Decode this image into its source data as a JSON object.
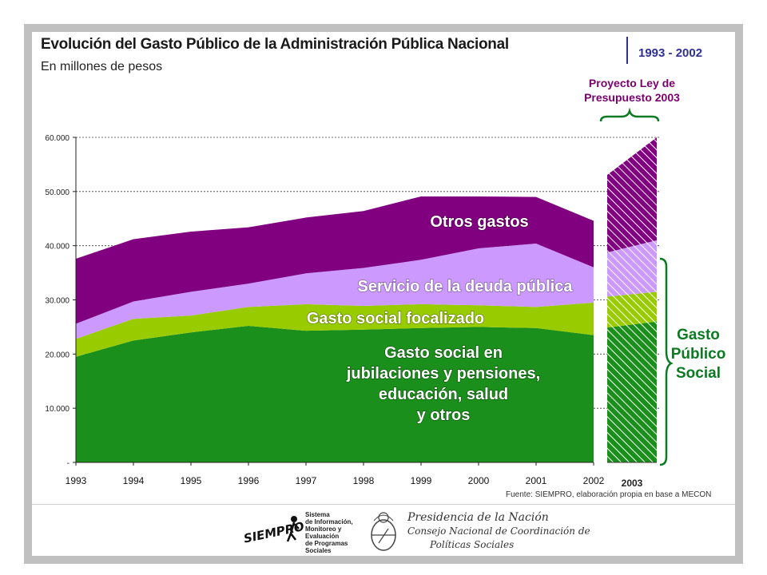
{
  "header": {
    "title": "Evolución del Gasto Público de la Administración Pública Nacional",
    "subtitle": "En millones de pesos",
    "period": "1993 - 2002",
    "projection_label_1": "Proyecto Ley de",
    "projection_label_2": "Presupuesto 2003"
  },
  "source": "Fuente: SIEMPRO, elaboración propia en base a MECON",
  "side_label": [
    "Gasto",
    "Público",
    "Social"
  ],
  "logos": {
    "siempro_name": "SIEMPRO",
    "siempro_lines": [
      "Sistema",
      "de Información,",
      "Monitoreo y",
      "Evaluación",
      "de Programas",
      "Sociales"
    ],
    "presidency_lines": [
      "Presidencia de la Nación",
      "Consejo Nacional de Coordinación de",
      "Políticas Sociales"
    ]
  },
  "chart_data": {
    "type": "area",
    "stacked": true,
    "x": [
      "1993",
      "1994",
      "1995",
      "1996",
      "1997",
      "1998",
      "1999",
      "2000",
      "2001",
      "2002"
    ],
    "ylim": [
      0,
      60000
    ],
    "yticks": [
      0,
      10000,
      20000,
      30000,
      40000,
      50000,
      60000
    ],
    "ytick_labels": [
      "-",
      "10.000",
      "20.000",
      "30.000",
      "40.000",
      "50.000",
      "60.000"
    ],
    "gridlines": "dotted horizontal",
    "series": [
      {
        "name": "Gasto social en jubilaciones y pensiones, educación, salud y otros",
        "color": "#1b8f1b",
        "values": [
          19500,
          22500,
          24000,
          25200,
          24300,
          24500,
          24800,
          25000,
          24800,
          23500
        ]
      },
      {
        "name": "Gasto social focalizado",
        "color": "#99cc00",
        "values": [
          3300,
          4000,
          3100,
          3500,
          4900,
          4400,
          4400,
          4000,
          3900,
          6000
        ]
      },
      {
        "name": "Servicio de la deuda pública",
        "color": "#cc99ff",
        "values": [
          2800,
          3200,
          4400,
          4300,
          5700,
          7000,
          8200,
          10500,
          11700,
          6500
        ]
      },
      {
        "name": "Otros gastos",
        "color": "#800080",
        "values": [
          12000,
          11500,
          11100,
          10400,
          10300,
          10500,
          11700,
          9600,
          8600,
          8600
        ]
      }
    ],
    "projection": {
      "x": "2003",
      "stacked_values": [
        26000,
        5500,
        9500,
        19000
      ]
    },
    "annotations": [
      {
        "text": "Otros gastos",
        "color": "#ffffff"
      },
      {
        "text": "Servicio de la deuda pública",
        "color": "#ffffff"
      },
      {
        "text": "Gasto social focalizado",
        "color": "#ffffff"
      },
      {
        "text": [
          "Gasto social en",
          "jubilaciones y pensiones,",
          "educación, salud",
          "y otros"
        ],
        "color": "#ffffff"
      }
    ]
  }
}
